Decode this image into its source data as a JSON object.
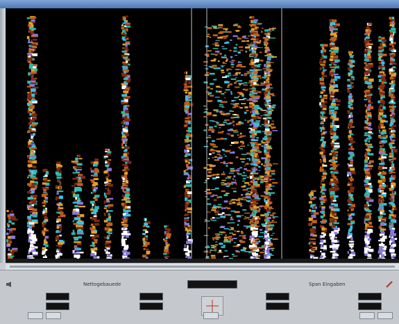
{
  "window": {
    "title": ""
  },
  "panel": {
    "left_section_label": "Nettogebauede",
    "right_section_label": "Span Eingaben",
    "center_display": "",
    "fields_left": [
      {
        "label": "",
        "value": ""
      },
      {
        "label": "",
        "value": ""
      }
    ],
    "fields_mid_left": [
      {
        "label": "",
        "value": ""
      },
      {
        "label": "",
        "value": ""
      }
    ],
    "fields_mid_right": [
      {
        "label": "",
        "value": ""
      },
      {
        "label": "",
        "value": ""
      }
    ],
    "fields_right": [
      {
        "label": "",
        "value": ""
      },
      {
        "label": "",
        "value": ""
      }
    ],
    "buttons": [
      "",
      "",
      "",
      "",
      ""
    ]
  },
  "colors": {
    "background": "#000000",
    "panel": "#c5c9ce",
    "titlebar": "#4e78b6",
    "spectrogram_palette": [
      "#7a2a14",
      "#c0601e",
      "#e0a030",
      "#2fb8a8",
      "#3cc0e0",
      "#8a78d8",
      "#ffffff"
    ]
  },
  "icons": {
    "left_corner": "speaker-icon",
    "right_corner": "pencil-icon",
    "center": "crosshair-icon"
  }
}
